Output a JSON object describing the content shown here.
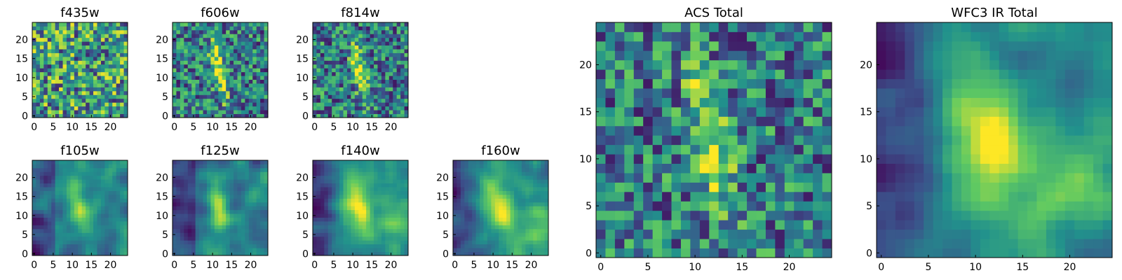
{
  "figure_colormap": [
    "#440154",
    "#3b528b",
    "#21918c",
    "#5ec962",
    "#fde725"
  ],
  "chart_data": [
    {
      "type": "heatmap",
      "title": "f435w",
      "pattern": "noisy",
      "xlim": [
        0,
        24
      ],
      "ylim": [
        0,
        24
      ],
      "xticks": [
        0,
        5,
        10,
        15,
        20
      ],
      "yticks": [
        0,
        5,
        10,
        15,
        20
      ]
    },
    {
      "type": "heatmap",
      "title": "f606w",
      "pattern": "noisy_streak",
      "xlim": [
        0,
        24
      ],
      "ylim": [
        0,
        24
      ],
      "xticks": [
        0,
        5,
        10,
        15,
        20
      ],
      "yticks": [
        0,
        5,
        10,
        15,
        20
      ]
    },
    {
      "type": "heatmap",
      "title": "f814w",
      "pattern": "noisy_streak",
      "xlim": [
        0,
        24
      ],
      "ylim": [
        0,
        24
      ],
      "xticks": [
        0,
        5,
        10,
        15,
        20
      ],
      "yticks": [
        0,
        5,
        10,
        15,
        20
      ]
    },
    {
      "type": "heatmap",
      "title": "f105w",
      "pattern": "smooth_streak",
      "xlim": [
        0,
        24
      ],
      "ylim": [
        0,
        24
      ],
      "xticks": [
        0,
        5,
        10,
        15,
        20
      ],
      "yticks": [
        0,
        5,
        10,
        15,
        20
      ]
    },
    {
      "type": "heatmap",
      "title": "f125w",
      "pattern": "smooth_streak",
      "xlim": [
        0,
        24
      ],
      "ylim": [
        0,
        24
      ],
      "xticks": [
        0,
        5,
        10,
        15,
        20
      ],
      "yticks": [
        0,
        5,
        10,
        15,
        20
      ]
    },
    {
      "type": "heatmap",
      "title": "f140w",
      "pattern": "smooth_blob",
      "xlim": [
        0,
        24
      ],
      "ylim": [
        0,
        24
      ],
      "xticks": [
        0,
        5,
        10,
        15,
        20
      ],
      "yticks": [
        0,
        5,
        10,
        15,
        20
      ]
    },
    {
      "type": "heatmap",
      "title": "f160w",
      "pattern": "smooth_blob",
      "xlim": [
        0,
        24
      ],
      "ylim": [
        0,
        24
      ],
      "xticks": [
        0,
        5,
        10,
        15,
        20
      ],
      "yticks": [
        0,
        5,
        10,
        15,
        20
      ]
    },
    {
      "type": "heatmap",
      "title": "ACS Total",
      "pattern": "noisy_streak",
      "xlim": [
        0,
        24
      ],
      "ylim": [
        0,
        24
      ],
      "xticks": [
        0,
        5,
        10,
        15,
        20
      ],
      "yticks": [
        0,
        5,
        10,
        15,
        20
      ]
    },
    {
      "type": "heatmap",
      "title": "WFC3 IR Total",
      "pattern": "smooth_blob",
      "xlim": [
        0,
        24
      ],
      "ylim": [
        0,
        24
      ],
      "xticks": [
        0,
        5,
        10,
        15,
        20
      ],
      "yticks": [
        0,
        5,
        10,
        15,
        20
      ]
    }
  ]
}
